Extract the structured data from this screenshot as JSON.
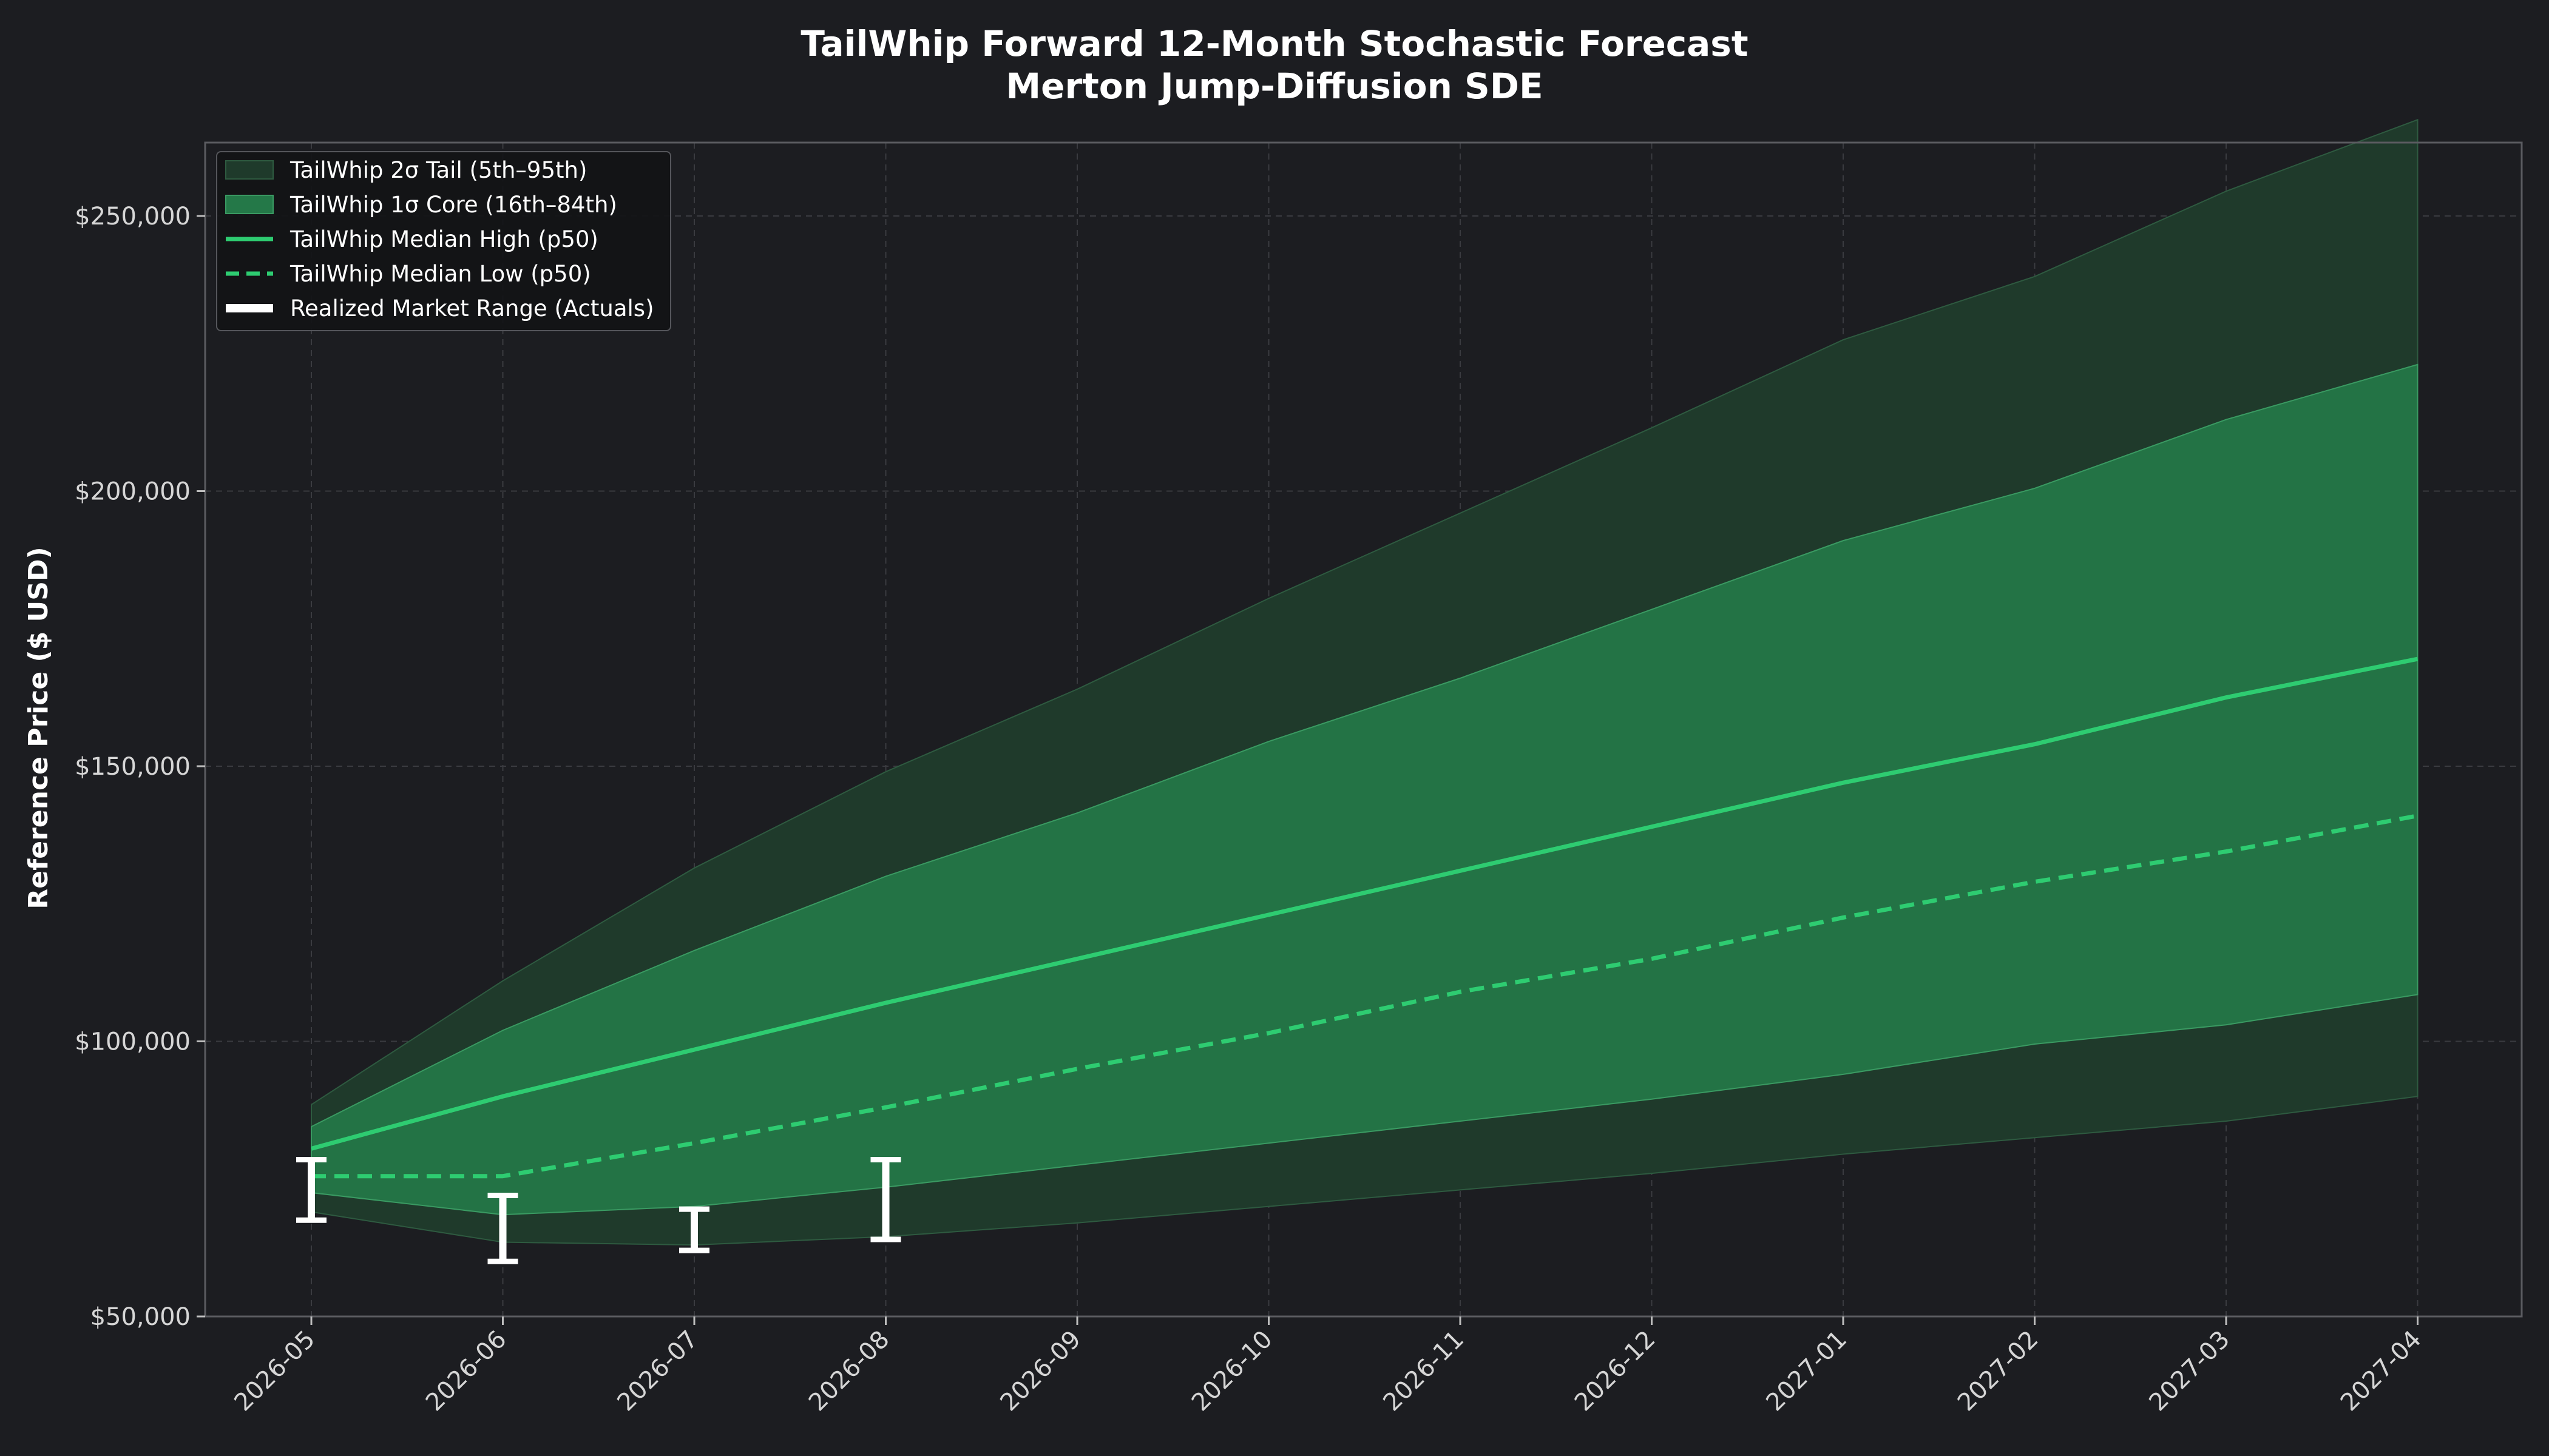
{
  "page": {
    "background": "#1c1d21"
  },
  "chart_data": {
    "type": "area",
    "title": "TailWhip Forward 12-Month Stochastic Forecast",
    "subtitle": "Merton Jump-Diffusion SDE",
    "xlabel": "",
    "ylabel": "Reference Price ($ USD)",
    "ylim": [
      50000,
      280000
    ],
    "yticks": [
      50000,
      100000,
      150000,
      200000,
      250000
    ],
    "ytick_labels": [
      "$50,000",
      "$100,000",
      "$150,000",
      "$200,000",
      "$250,000"
    ],
    "grid": true,
    "legend_position": "top-left",
    "x": [
      "2026-05",
      "2026-06",
      "2026-07",
      "2026-08",
      "2026-09",
      "2026-10",
      "2026-11",
      "2026-12",
      "2027-01",
      "2027-02",
      "2027-03",
      "2027-04"
    ],
    "bands": [
      {
        "name": "TailWhip 2σ Tail (5th–95th)",
        "color": "#1f3a2b",
        "lower": [
          69000,
          63500,
          63000,
          64500,
          67000,
          70000,
          73000,
          76000,
          79500,
          82500,
          85500,
          90000
        ],
        "upper": [
          88500,
          111000,
          131500,
          149000,
          164000,
          180500,
          196000,
          211500,
          227500,
          239000,
          254500,
          267500
        ]
      },
      {
        "name": "TailWhip 1σ Core (16th–84th)",
        "color": "#247848",
        "lower": [
          72500,
          68500,
          70000,
          73500,
          77500,
          81500,
          85500,
          89500,
          94000,
          99500,
          103000,
          108500
        ],
        "upper": [
          84500,
          102000,
          116500,
          130000,
          141500,
          154500,
          166000,
          178500,
          191000,
          200500,
          213000,
          223000
        ]
      }
    ],
    "series": [
      {
        "name": "TailWhip Median High (p50)",
        "style": "solid",
        "color": "#2ecc71",
        "values": [
          80500,
          90000,
          98500,
          107000,
          115000,
          123000,
          131000,
          139000,
          147000,
          154000,
          162500,
          169500
        ]
      },
      {
        "name": "TailWhip Median Low (p50)",
        "style": "dashed",
        "color": "#2ecc71",
        "values": [
          75500,
          75500,
          81500,
          88000,
          95000,
          101500,
          109000,
          115000,
          122500,
          129000,
          134500,
          141000
        ]
      }
    ],
    "actuals": {
      "name": "Realized Market Range (Actuals)",
      "color": "#ffffff",
      "points": [
        {
          "x": "2026-05",
          "low": 67500,
          "high": 78500
        },
        {
          "x": "2026-06",
          "low": 60000,
          "high": 72000
        },
        {
          "x": "2026-07",
          "low": 62000,
          "high": 69500
        },
        {
          "x": "2026-08",
          "low": 64000,
          "high": 78500
        }
      ]
    },
    "colors": {
      "plot_background": "#1c1d21",
      "axis_spine": "#5a5b60",
      "grid": "#3a3b40",
      "legend_background": "#121316",
      "legend_border": "#55565b"
    }
  }
}
